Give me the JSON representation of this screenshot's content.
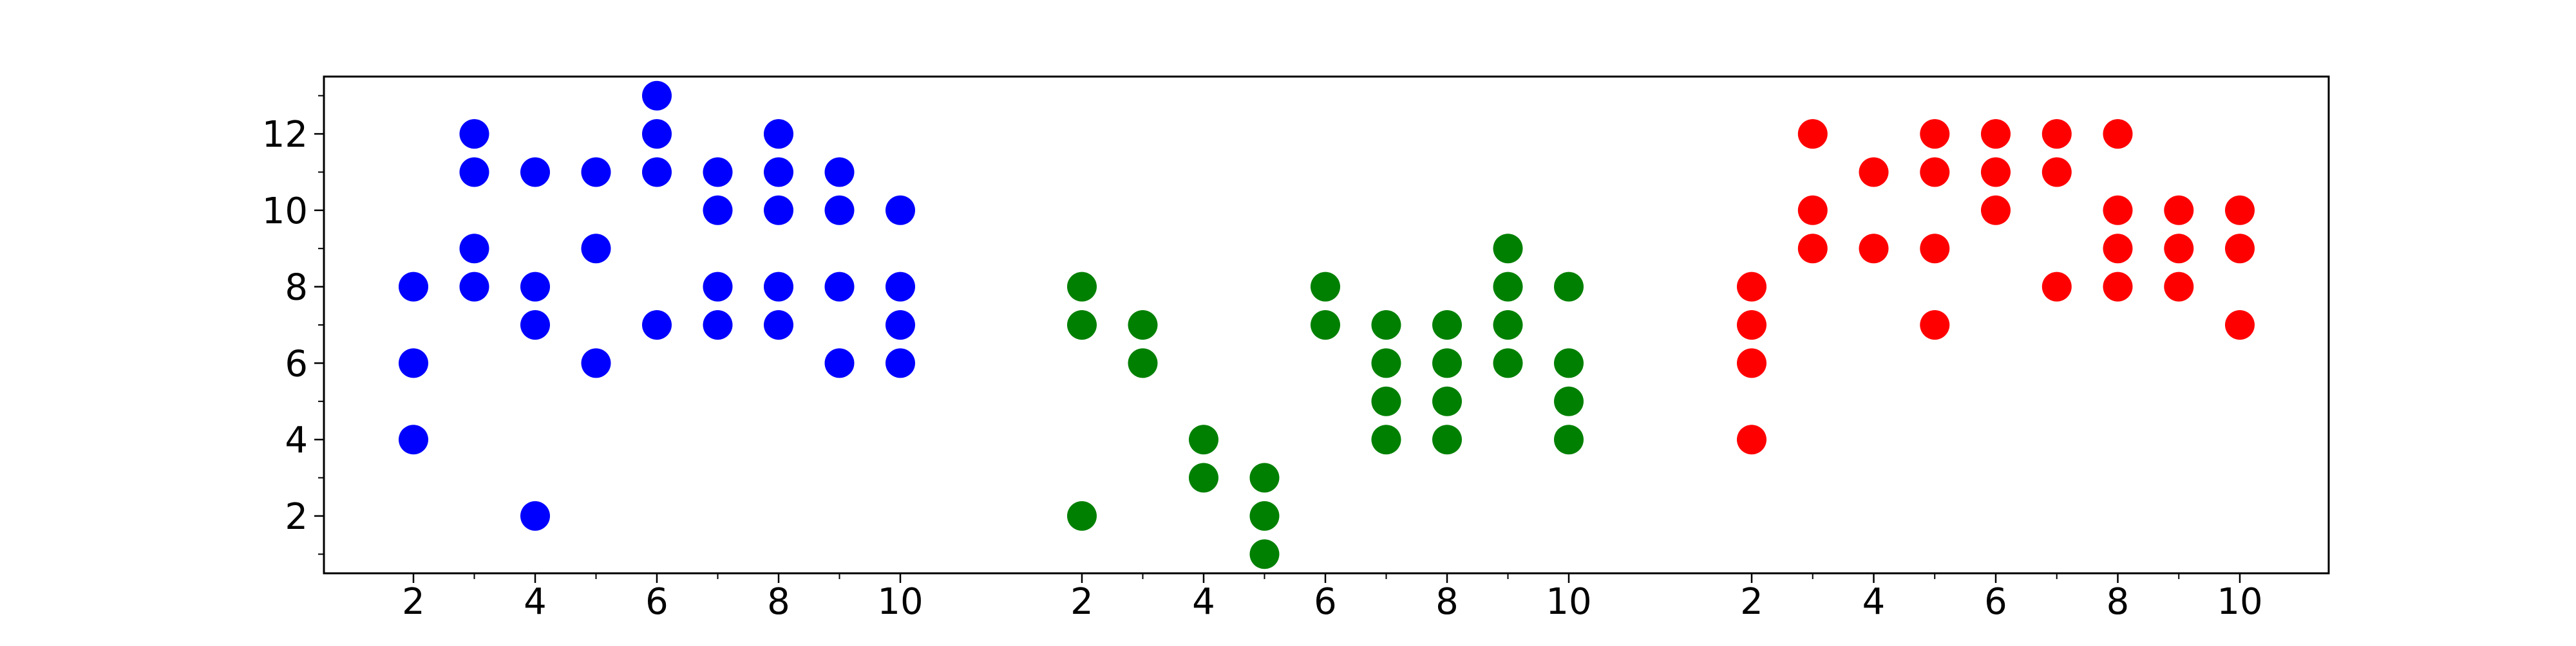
{
  "chart_data": {
    "type": "scatter",
    "title": "",
    "xlabel": "",
    "ylabel": "",
    "grid": false,
    "legend": "none",
    "ylim": [
      0.5,
      13.5
    ],
    "yticks": [
      2,
      4,
      6,
      8,
      10,
      12
    ],
    "yticks_minor": [
      1,
      3,
      5,
      7,
      9,
      11,
      13
    ],
    "groups": [
      {
        "color": "#0000ff",
        "xlim": [
          2,
          10
        ],
        "xticks": [
          2,
          4,
          6,
          8,
          10
        ],
        "xticks_minor": [
          3,
          5,
          7,
          9
        ],
        "points": [
          [
            2,
            4
          ],
          [
            2,
            6
          ],
          [
            2,
            8
          ],
          [
            3,
            8
          ],
          [
            3,
            9
          ],
          [
            3,
            11
          ],
          [
            3,
            12
          ],
          [
            4,
            2
          ],
          [
            4,
            7
          ],
          [
            4,
            8
          ],
          [
            4,
            11
          ],
          [
            5,
            6
          ],
          [
            5,
            9
          ],
          [
            5,
            11
          ],
          [
            6,
            7
          ],
          [
            6,
            11
          ],
          [
            6,
            12
          ],
          [
            6,
            13
          ],
          [
            7,
            7
          ],
          [
            7,
            8
          ],
          [
            7,
            10
          ],
          [
            7,
            11
          ],
          [
            8,
            7
          ],
          [
            8,
            8
          ],
          [
            8,
            10
          ],
          [
            8,
            11
          ],
          [
            8,
            12
          ],
          [
            9,
            6
          ],
          [
            9,
            8
          ],
          [
            9,
            10
          ],
          [
            9,
            11
          ],
          [
            10,
            6
          ],
          [
            10,
            7
          ],
          [
            10,
            8
          ],
          [
            10,
            10
          ]
        ]
      },
      {
        "color": "#008000",
        "xlim": [
          2,
          10
        ],
        "xticks": [
          2,
          4,
          6,
          8,
          10
        ],
        "xticks_minor": [
          3,
          5,
          7,
          9
        ],
        "points": [
          [
            2,
            2
          ],
          [
            2,
            7
          ],
          [
            2,
            8
          ],
          [
            3,
            6
          ],
          [
            3,
            7
          ],
          [
            4,
            3
          ],
          [
            4,
            4
          ],
          [
            5,
            1
          ],
          [
            5,
            2
          ],
          [
            5,
            3
          ],
          [
            6,
            7
          ],
          [
            6,
            8
          ],
          [
            7,
            4
          ],
          [
            7,
            5
          ],
          [
            7,
            6
          ],
          [
            7,
            7
          ],
          [
            8,
            4
          ],
          [
            8,
            5
          ],
          [
            8,
            6
          ],
          [
            8,
            7
          ],
          [
            9,
            6
          ],
          [
            9,
            7
          ],
          [
            9,
            8
          ],
          [
            9,
            9
          ],
          [
            10,
            4
          ],
          [
            10,
            5
          ],
          [
            10,
            6
          ],
          [
            10,
            8
          ]
        ]
      },
      {
        "color": "#ff0000",
        "xlim": [
          2,
          10
        ],
        "xticks": [
          2,
          4,
          6,
          8,
          10
        ],
        "xticks_minor": [
          3,
          5,
          7,
          9
        ],
        "points": [
          [
            2,
            4
          ],
          [
            2,
            6
          ],
          [
            2,
            7
          ],
          [
            2,
            8
          ],
          [
            3,
            9
          ],
          [
            3,
            10
          ],
          [
            3,
            12
          ],
          [
            4,
            9
          ],
          [
            4,
            11
          ],
          [
            5,
            7
          ],
          [
            5,
            9
          ],
          [
            5,
            11
          ],
          [
            5,
            12
          ],
          [
            6,
            10
          ],
          [
            6,
            11
          ],
          [
            6,
            12
          ],
          [
            7,
            8
          ],
          [
            7,
            11
          ],
          [
            7,
            12
          ],
          [
            8,
            8
          ],
          [
            8,
            9
          ],
          [
            8,
            10
          ],
          [
            8,
            12
          ],
          [
            9,
            8
          ],
          [
            9,
            9
          ],
          [
            9,
            10
          ],
          [
            10,
            7
          ],
          [
            10,
            9
          ],
          [
            10,
            10
          ]
        ]
      }
    ]
  }
}
